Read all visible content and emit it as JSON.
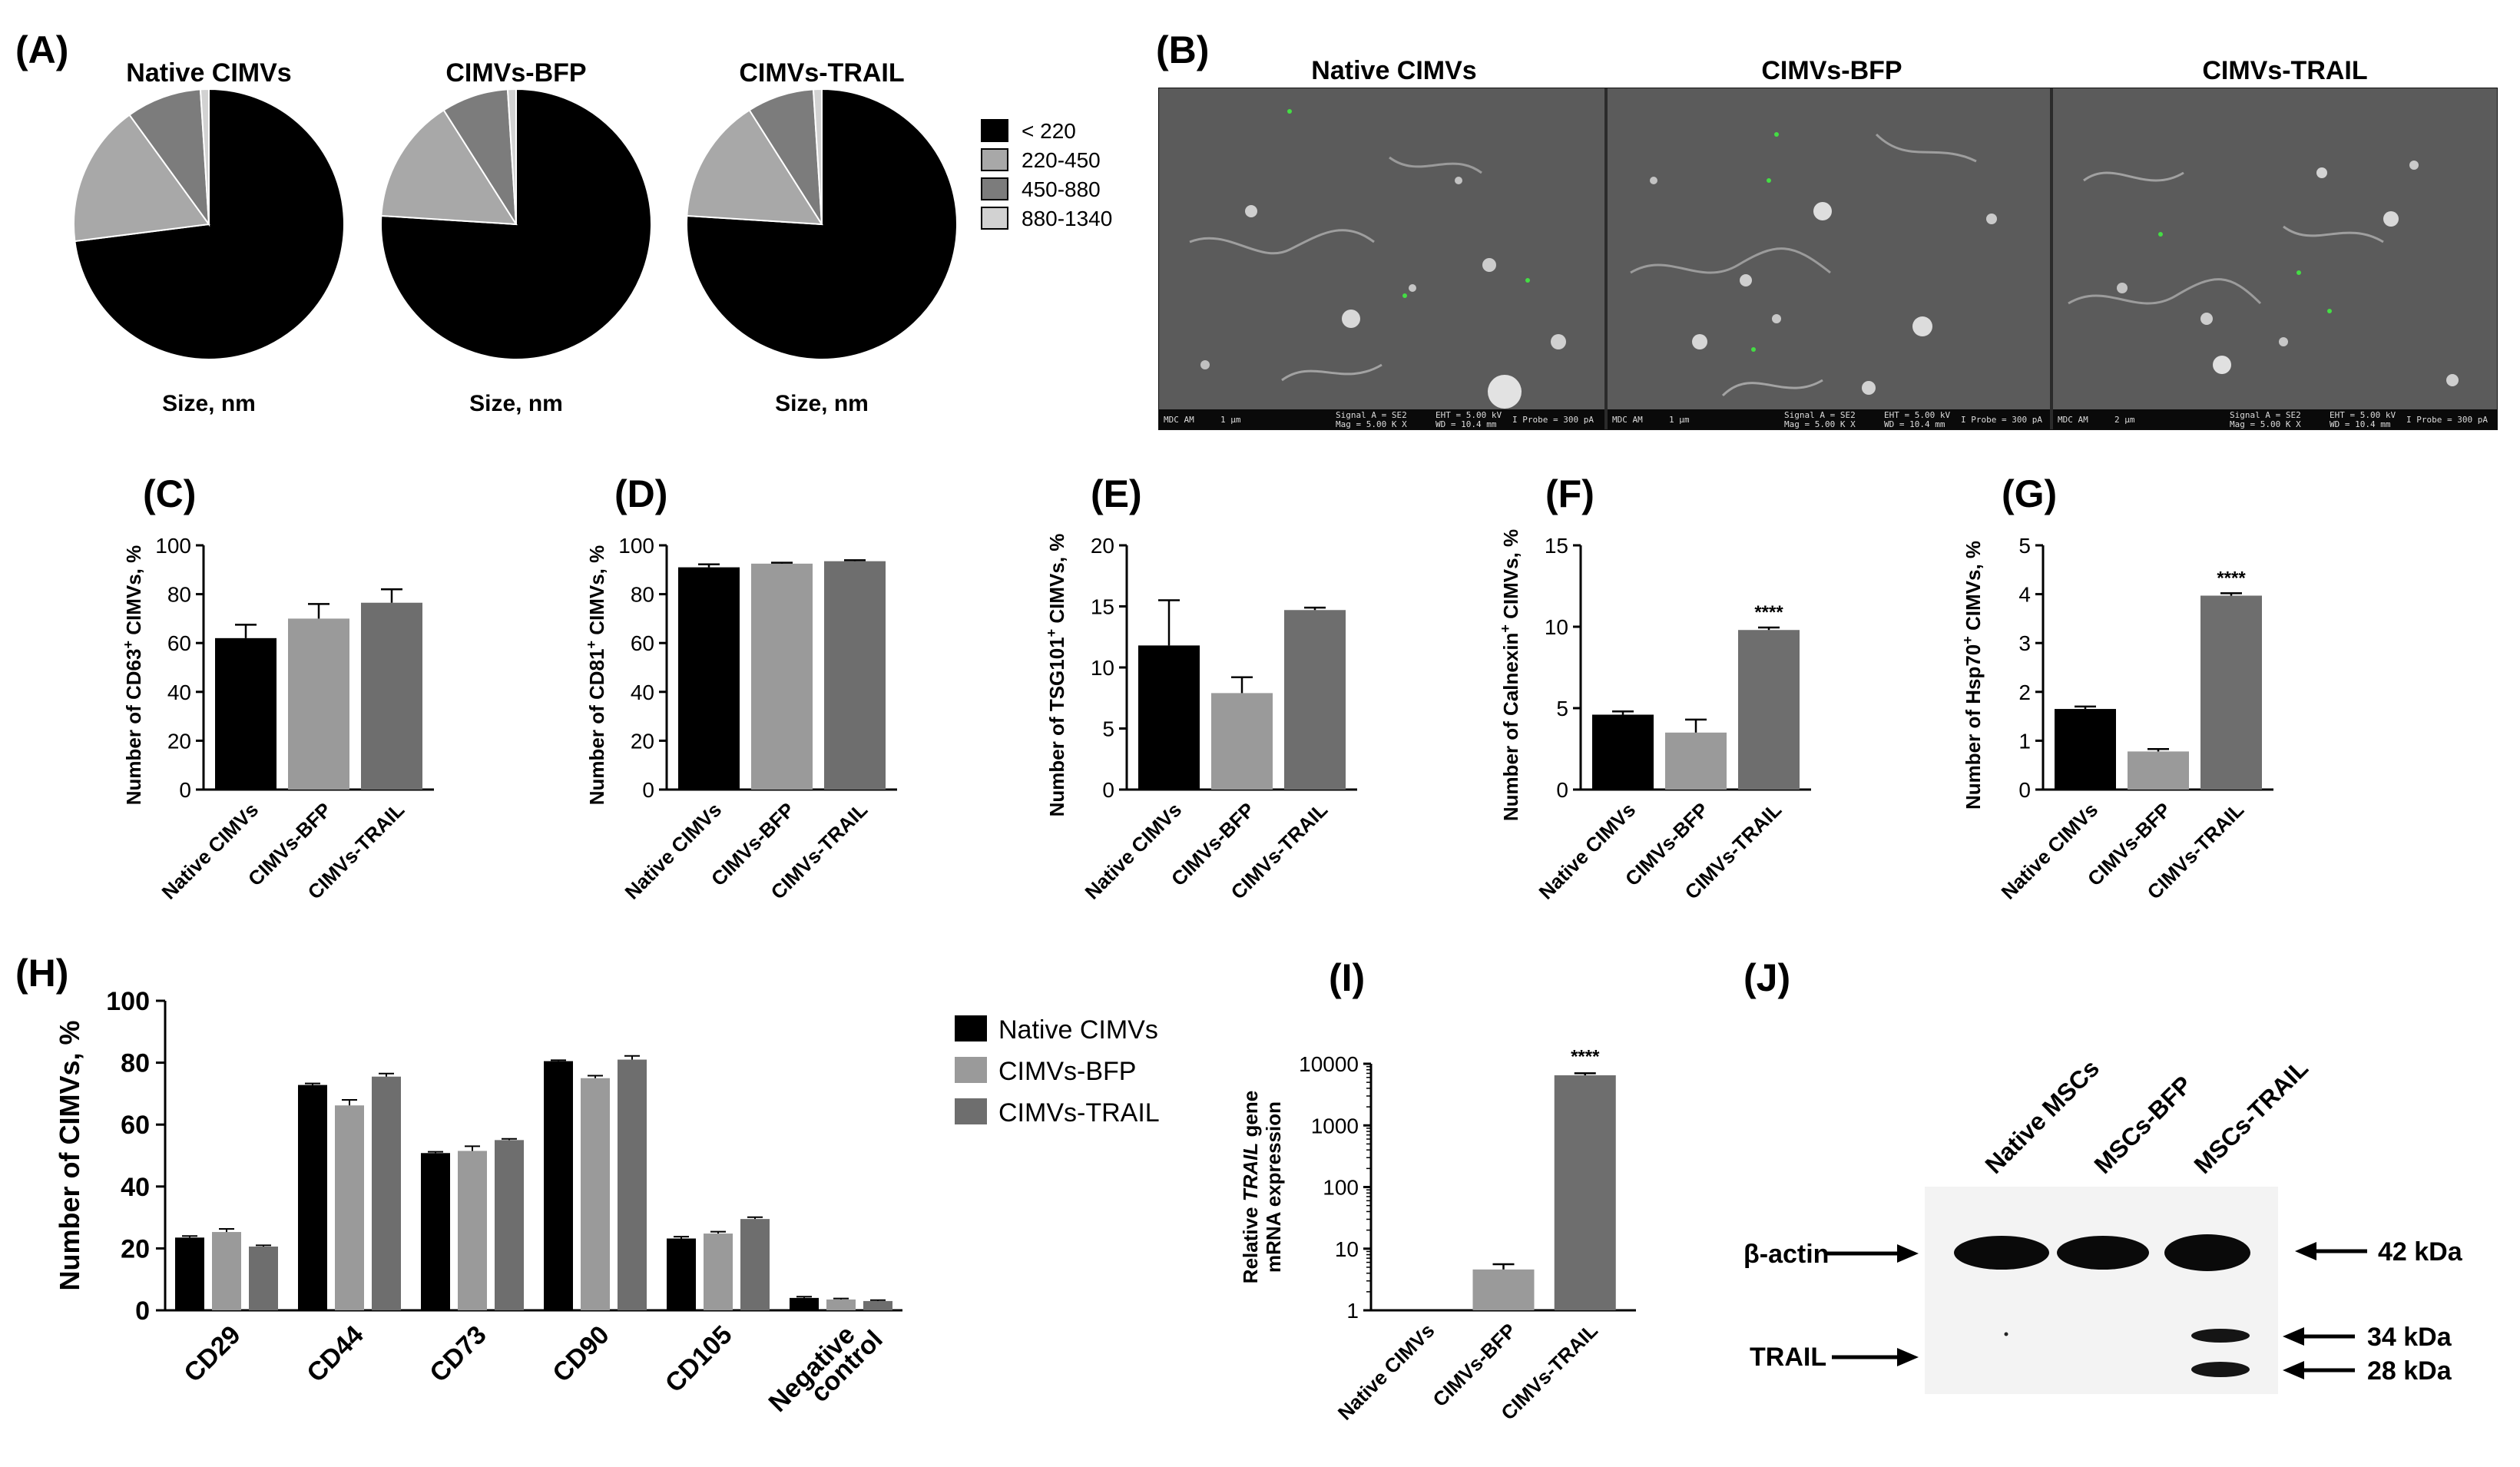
{
  "figure": {
    "panels": {
      "A": "(A)",
      "B": "(B)",
      "C": "(C)",
      "D": "(D)",
      "E": "(E)",
      "F": "(F)",
      "G": "(G)",
      "H": "(H)",
      "I": "(I)",
      "J": "(J)"
    }
  },
  "colors": {
    "native": "#000000",
    "bfp": "#9a9a9a",
    "trail": "#6e6e6e",
    "pie_lt220": "#000000",
    "pie_220_450": "#a8a8a8",
    "pie_450_880": "#7c7c7c",
    "pie_880_1340": "#d2d2d2"
  },
  "chart_data": [
    {
      "type": "pie",
      "panel": "A",
      "title": "Native CIMVs",
      "xlabel": "Size, nm",
      "legend": {
        "position": "right",
        "entries": [
          "< 220",
          "220-450",
          "450-880",
          "880-1340"
        ]
      },
      "categories": [
        "< 220",
        "220-450",
        "450-880",
        "880-1340"
      ],
      "values": [
        73,
        17,
        9,
        1
      ]
    },
    {
      "type": "pie",
      "panel": "A",
      "title": "CIMVs-BFP",
      "xlabel": "Size, nm",
      "categories": [
        "< 220",
        "220-450",
        "450-880",
        "880-1340"
      ],
      "values": [
        76,
        15,
        8,
        1
      ]
    },
    {
      "type": "pie",
      "panel": "A",
      "title": "CIMVs-TRAIL",
      "xlabel": "Size, nm",
      "categories": [
        "< 220",
        "220-450",
        "450-880",
        "880-1340"
      ],
      "values": [
        76,
        15,
        8,
        1
      ]
    },
    {
      "type": "bar",
      "panel": "C",
      "ylabel_prefix": "Number of CD63",
      "ylabel_sup": "+",
      "ylabel_suffix": " CIMVs, %",
      "categories": [
        "Native CIMVs",
        "CIMVs-BFP",
        "CIMVs-TRAIL"
      ],
      "values": [
        62,
        70,
        76.5
      ],
      "errors": [
        5.5,
        6,
        5.5
      ],
      "ylim": [
        0,
        100
      ],
      "yticks": [
        "0",
        "20",
        "40",
        "60",
        "80",
        "100"
      ],
      "stars": [
        "",
        "",
        ""
      ]
    },
    {
      "type": "bar",
      "panel": "D",
      "ylabel_prefix": "Number of CD81",
      "ylabel_sup": "+",
      "ylabel_suffix": " CIMVs, %",
      "categories": [
        "Native CIMVs",
        "CIMVs-BFP",
        "CIMVs-TRAIL"
      ],
      "values": [
        91,
        92.5,
        93.5
      ],
      "errors": [
        1.2,
        0.4,
        0.4
      ],
      "ylim": [
        0,
        100
      ],
      "yticks": [
        "0",
        "20",
        "40",
        "60",
        "80",
        "100"
      ],
      "stars": [
        "",
        "",
        ""
      ]
    },
    {
      "type": "bar",
      "panel": "E",
      "ylabel_prefix": "Number of TSG101",
      "ylabel_sup": "+",
      "ylabel_suffix": " CIMVs, %",
      "categories": [
        "Native CIMVs",
        "CIMVs-BFP",
        "CIMVs-TRAIL"
      ],
      "values": [
        11.8,
        7.9,
        14.7
      ],
      "errors": [
        3.7,
        1.3,
        0.2
      ],
      "ylim": [
        0,
        20
      ],
      "yticks": [
        "0",
        "5",
        "10",
        "15",
        "20"
      ],
      "stars": [
        "",
        "",
        ""
      ]
    },
    {
      "type": "bar",
      "panel": "F",
      "ylabel_prefix": "Number of Calnexin",
      "ylabel_sup": "+",
      "ylabel_suffix": " CIMVs, %",
      "categories": [
        "Native CIMVs",
        "CIMVs-BFP",
        "CIMVs-TRAIL"
      ],
      "values": [
        4.6,
        3.5,
        9.8
      ],
      "errors": [
        0.2,
        0.8,
        0.15
      ],
      "ylim": [
        0,
        15
      ],
      "yticks": [
        "0",
        "5",
        "10",
        "15"
      ],
      "stars": [
        "",
        "",
        "****"
      ]
    },
    {
      "type": "bar",
      "panel": "G",
      "ylabel_prefix": "Number of Hsp70",
      "ylabel_sup": "+",
      "ylabel_suffix": " CIMVs, %",
      "categories": [
        "Native CIMVs",
        "CIMVs-BFP",
        "CIMVs-TRAIL"
      ],
      "values": [
        1.65,
        0.78,
        3.97
      ],
      "errors": [
        0.05,
        0.05,
        0.05
      ],
      "ylim": [
        0,
        5
      ],
      "yticks": [
        "0",
        "1",
        "2",
        "3",
        "4",
        "5"
      ],
      "stars": [
        "",
        "",
        "****"
      ]
    },
    {
      "type": "bar",
      "panel": "H",
      "ylabel": "Number of CIMVs, %",
      "categories": [
        "CD29",
        "CD44",
        "CD73",
        "CD90",
        "CD105",
        "Negative control"
      ],
      "category_lines": [
        [
          "CD29"
        ],
        [
          "CD44"
        ],
        [
          "CD73"
        ],
        [
          "CD90"
        ],
        [
          "CD105"
        ],
        [
          "Negative",
          "control"
        ]
      ],
      "series": [
        {
          "name": "Native CIMVs",
          "values": [
            23.5,
            72.8,
            50.8,
            80.5,
            23.2,
            4.0
          ],
          "errors": [
            0.5,
            0.5,
            0.4,
            0.3,
            0.6,
            0.4
          ]
        },
        {
          "name": "CIMVs-BFP",
          "values": [
            25.3,
            66.2,
            51.5,
            75.0,
            24.8,
            3.5
          ],
          "errors": [
            1.0,
            1.8,
            1.5,
            0.8,
            0.6,
            0.3
          ]
        },
        {
          "name": "CIMVs-TRAIL",
          "values": [
            20.6,
            75.5,
            55.0,
            81.0,
            29.5,
            3.0
          ],
          "errors": [
            0.4,
            1.0,
            0.4,
            1.2,
            0.6,
            0.3
          ]
        }
      ],
      "ylim": [
        0,
        100
      ],
      "yticks": [
        "0",
        "20",
        "40",
        "60",
        "80",
        "100"
      ],
      "legend": {
        "position": "right"
      }
    },
    {
      "type": "bar",
      "panel": "I",
      "scale": "log",
      "ylabel_line1_pre": "Relative ",
      "ylabel_line1_italic": "TRAIL",
      "ylabel_line1_post": " gene",
      "ylabel_line2": "mRNA expression",
      "categories": [
        "Native CIMVs",
        "CIMVs-BFP",
        "CIMVs-TRAIL"
      ],
      "values": [
        1,
        4.6,
        6500
      ],
      "errors_high": [
        1,
        5.6,
        7000
      ],
      "ylim": [
        1,
        10000
      ],
      "yticks": [
        "1",
        "10",
        "100",
        "1000",
        "10000"
      ],
      "stars": [
        "",
        "",
        "****"
      ]
    }
  ],
  "sem": {
    "headers": [
      "Native CIMVs",
      "CIMVs-BFP",
      "CIMVs-TRAIL"
    ],
    "bar_texts": [
      [
        "MDC AM",
        "1 µm",
        "Signal A = SE2",
        "Mag = 5.00 K X",
        "EHT = 5.00 kV",
        "WD = 10.4 mm",
        "I Probe = 300 pA"
      ],
      [
        "MDC AM",
        "1 µm",
        "Signal A = SE2",
        "Mag = 5.00 K X",
        "EHT = 5.00 kV",
        "WD = 10.4 mm",
        "I Probe = 300 pA"
      ],
      [
        "MDC AM",
        "2 µm",
        "Signal A = SE2",
        "Mag = 5.00 K X",
        "EHT = 5.00 kV",
        "WD = 10.4 mm",
        "I Probe = 300 pA"
      ]
    ]
  },
  "western": {
    "lanes": [
      "Native MSCs",
      "MSCs-BFP",
      "MSCs-TRAIL"
    ],
    "left_labels": {
      "actin": "β-actin",
      "trail": "TRAIL"
    },
    "right_labels": {
      "kda42": "42 kDa",
      "kda34": "34 kDa",
      "kda28": "28 kDa"
    }
  }
}
